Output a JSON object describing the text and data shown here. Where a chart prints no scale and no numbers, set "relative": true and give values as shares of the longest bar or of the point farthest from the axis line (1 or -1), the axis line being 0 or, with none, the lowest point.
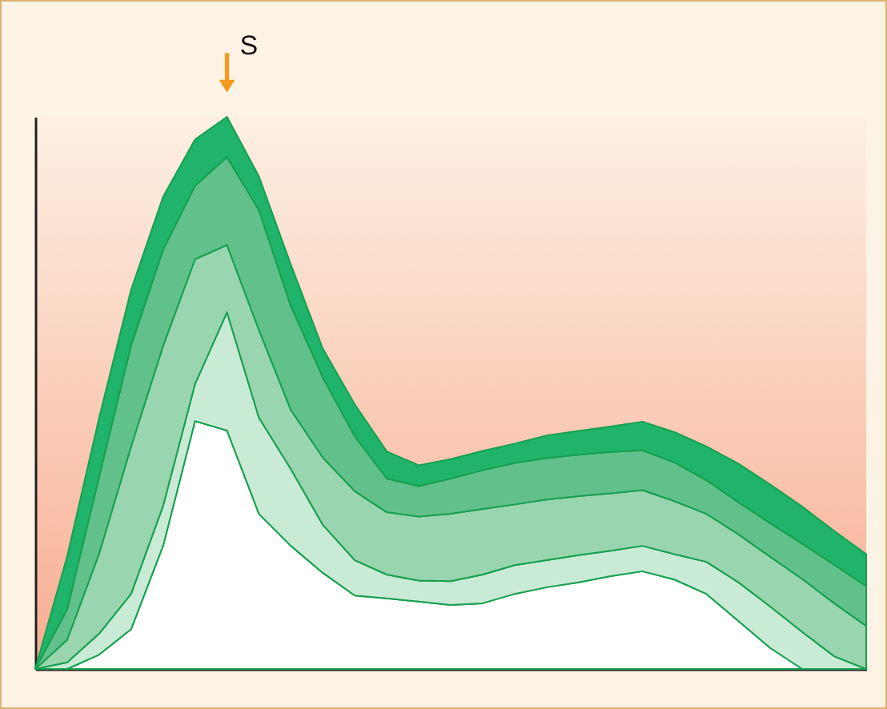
{
  "chart_data": {
    "type": "area",
    "stacked": true,
    "relative": true,
    "categories": [
      null,
      null,
      null,
      null,
      null,
      null,
      null,
      null,
      null,
      null,
      null,
      null,
      null,
      null,
      null,
      null,
      null,
      null,
      null,
      null,
      null,
      null,
      null,
      null,
      null,
      null,
      null
    ],
    "series": [
      {
        "color": "#ffffff",
        "values": [
          0,
          0,
          0.026,
          0.072,
          0.223,
          0.449,
          0.432,
          0.281,
          0.223,
          0.174,
          0.133,
          0.128,
          0.122,
          0.116,
          0.119,
          0.136,
          0.148,
          0.157,
          0.168,
          0.177,
          0.162,
          0.136,
          0.087,
          0.038,
          0,
          0,
          0
        ]
      },
      {
        "color": "#c9ebd6",
        "values": [
          0,
          0.012,
          0.038,
          0.064,
          0.072,
          0.067,
          0.214,
          0.174,
          0.139,
          0.087,
          0.064,
          0.043,
          0.038,
          0.043,
          0.052,
          0.052,
          0.049,
          0.049,
          0.046,
          0.046,
          0.046,
          0.058,
          0.07,
          0.075,
          0.067,
          0.023,
          0
        ]
      },
      {
        "color": "#99d5ae",
        "values": [
          0,
          0.041,
          0.145,
          0.267,
          0.29,
          0.226,
          0.122,
          0.159,
          0.107,
          0.122,
          0.125,
          0.113,
          0.116,
          0.122,
          0.119,
          0.11,
          0.11,
          0.107,
          0.104,
          0.101,
          0.096,
          0.087,
          0.087,
          0.09,
          0.096,
          0.096,
          0.078
        ]
      },
      {
        "color": "#62c18b",
        "values": [
          0,
          0.055,
          0.139,
          0.183,
          0.174,
          0.133,
          0.159,
          0.217,
          0.188,
          0.145,
          0.099,
          0.061,
          0.055,
          0.064,
          0.07,
          0.075,
          0.075,
          0.075,
          0.075,
          0.072,
          0.07,
          0.061,
          0.058,
          0.061,
          0.064,
          0.07,
          0.072
        ]
      },
      {
        "color": "#20b36a",
        "values": [
          0,
          0.096,
          0.107,
          0.101,
          0.096,
          0.084,
          0.073,
          0.061,
          0.075,
          0.052,
          0.058,
          0.049,
          0.038,
          0.035,
          0.035,
          0.035,
          0.041,
          0.043,
          0.046,
          0.052,
          0.055,
          0.061,
          0.07,
          0.07,
          0.067,
          0.061,
          0.058
        ]
      }
    ],
    "annotations": [
      "S"
    ]
  }
}
